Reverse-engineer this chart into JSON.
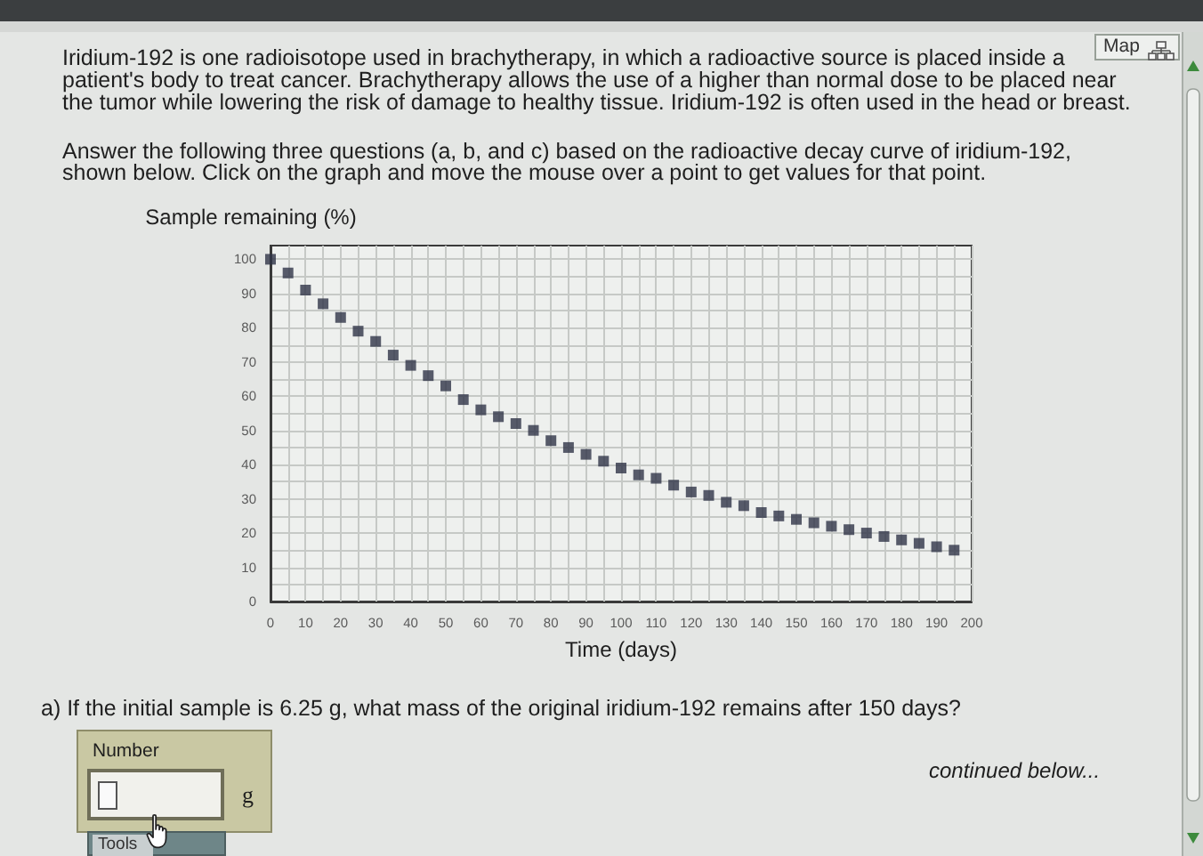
{
  "chart_data": {
    "type": "scatter",
    "title": "Iridium-192 is one radioisotope used in brachytherapy, in which a radioactive source is placed inside a patient's body to treat cancer. Brachytherapy allows the use of a higher than normal dose to be placed near the tumor while lowering the risk of damage to healthy tissue. Iridium-192 is often used in the head or breast.",
    "subtitle": "Answer the following three questions (a, b, and c) based on the radioactive decay curve of iridium-192, shown below. Click on the graph and move the mouse over a point to get values for that point.",
    "xlabel": "Time (days)",
    "ylabel": "Sample remaining (%)",
    "annotations": [
      "a) If the initial sample is 6.25 g, what mass of the original iridium-192 remains after 150 days?",
      "Number",
      "g",
      "Tools",
      "continued below...",
      "Map"
    ],
    "x": [
      0,
      5,
      10,
      15,
      20,
      25,
      30,
      35,
      40,
      45,
      50,
      55,
      60,
      65,
      70,
      75,
      80,
      85,
      90,
      95,
      100,
      105,
      110,
      115,
      120,
      125,
      130,
      135,
      140,
      145,
      150,
      155,
      160,
      165,
      170,
      175,
      180,
      185,
      190,
      195
    ],
    "series": [
      {
        "color": "#2f3447",
        "values": [
          100,
          96,
          91,
          87,
          83,
          79,
          76,
          72,
          69,
          66,
          63,
          59,
          56,
          54,
          52,
          50,
          47,
          45,
          43,
          41,
          39,
          37,
          36,
          34,
          32,
          31,
          29,
          28,
          26,
          25,
          24,
          23,
          22,
          21,
          20,
          19,
          18,
          17,
          16,
          15
        ]
      }
    ],
    "xlim": [
      0,
      200
    ],
    "xticks": [
      0,
      {
        "value": 5,
        "label": null
      },
      10,
      {
        "value": 15,
        "label": null
      },
      20,
      {
        "value": 25,
        "label": null
      },
      30,
      {
        "value": 35,
        "label": null
      },
      40,
      {
        "value": 45,
        "label": null
      },
      50,
      {
        "value": 55,
        "label": null
      },
      60,
      {
        "value": 65,
        "label": null
      },
      70,
      {
        "value": 75,
        "label": null
      },
      80,
      {
        "value": 85,
        "label": null
      },
      90,
      {
        "value": 95,
        "label": null
      },
      100,
      {
        "value": 105,
        "label": null
      },
      110,
      {
        "value": 115,
        "label": null
      },
      120,
      {
        "value": 125,
        "label": null
      },
      130,
      {
        "value": 135,
        "label": null
      },
      140,
      {
        "value": 145,
        "label": null
      },
      150,
      {
        "value": 155,
        "label": null
      },
      160,
      {
        "value": 165,
        "label": null
      },
      170,
      {
        "value": 175,
        "label": null
      },
      180,
      {
        "value": 185,
        "label": null
      },
      190,
      {
        "value": 195,
        "label": null
      },
      200
    ],
    "ylim": [
      0,
      104
    ],
    "yticks": [
      0,
      {
        "value": 5,
        "label": null
      },
      10,
      {
        "value": 15,
        "label": null
      },
      20,
      {
        "value": 25,
        "label": null
      },
      30,
      {
        "value": 35,
        "label": null
      },
      40,
      {
        "value": 45,
        "label": null
      },
      50,
      {
        "value": 55,
        "label": null
      },
      60,
      {
        "value": 65,
        "label": null
      },
      70,
      {
        "value": 75,
        "label": null
      },
      80,
      {
        "value": 85,
        "label": null
      },
      90,
      {
        "value": 95,
        "label": null
      },
      100
    ],
    "grid": true,
    "marker": "square"
  }
}
